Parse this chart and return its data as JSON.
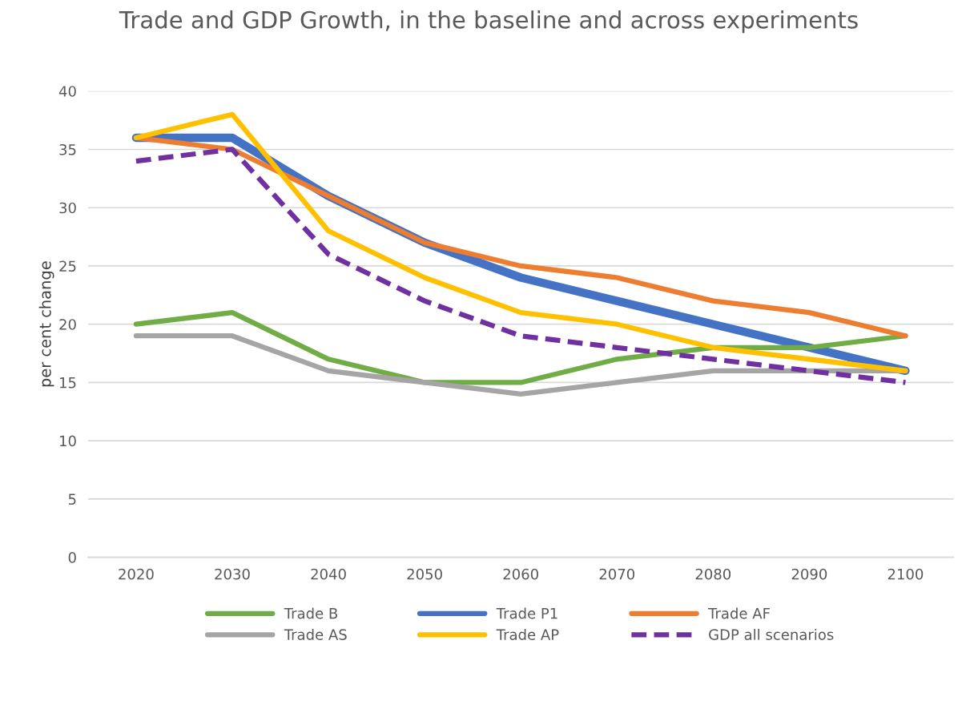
{
  "chart_data": {
    "type": "line",
    "title": "Trade and GDP Growth, in the baseline and across experiments",
    "ylabel": "per cent change",
    "categories": [
      "2020",
      "2030",
      "2040",
      "2050",
      "2060",
      "2070",
      "2080",
      "2090",
      "2100"
    ],
    "series": [
      {
        "name": "Trade B",
        "color": "#70ad47",
        "values": [
          20,
          21,
          17,
          15,
          15,
          17,
          18,
          18,
          19
        ]
      },
      {
        "name": "Trade P1",
        "color": "#4472c4",
        "values": [
          36,
          36,
          31,
          27,
          24,
          22,
          20,
          18,
          16
        ]
      },
      {
        "name": "Trade AF",
        "color": "#ed7d31",
        "values": [
          36,
          35,
          31,
          27,
          25,
          24,
          22,
          21,
          19
        ]
      },
      {
        "name": "Trade AS",
        "color": "#a5a5a5",
        "values": [
          19,
          19,
          16,
          15,
          14,
          15,
          16,
          16,
          16
        ]
      },
      {
        "name": "Trade AP",
        "color": "#ffc000",
        "values": [
          36,
          38,
          28,
          24,
          21,
          20,
          18,
          17,
          16
        ]
      },
      {
        "name": "GDP all scenarios",
        "color": "#7030a0",
        "line_style": "dashed",
        "values": [
          34,
          35,
          26,
          22,
          19,
          18,
          17,
          16,
          15
        ]
      }
    ],
    "ylim": [
      0,
      40
    ],
    "yticks": [
      0,
      5,
      10,
      15,
      20,
      25,
      30,
      35,
      40
    ],
    "grid": "y",
    "legend": "bottom",
    "marker": "none"
  }
}
